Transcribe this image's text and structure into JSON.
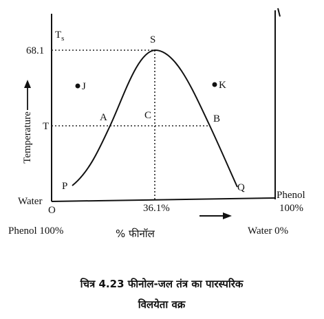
{
  "diagram": {
    "y_axis_label": "Temperature",
    "upper_temp": "68.1",
    "critical_label": {
      "main": "T",
      "sub": "s"
    },
    "lower_temp_label": "T",
    "points": {
      "S": "S",
      "J": "J",
      "K": "K",
      "A": "A",
      "C": "C",
      "B": "B",
      "P": "P",
      "Q": "Q",
      "O": "O"
    },
    "left_axis_label": "Water",
    "right_axis_label": [
      "Phenol",
      "100%"
    ],
    "critical_composition": "36.1%",
    "left_composition": "Phenol 100%",
    "x_axis_label": "% फीनॉल",
    "right_composition": "Water 0%",
    "caption": [
      "चित्र 4.23 फीनोल-जल तंत्र का पारस्परिक",
      "विलयेता वक्र"
    ]
  }
}
